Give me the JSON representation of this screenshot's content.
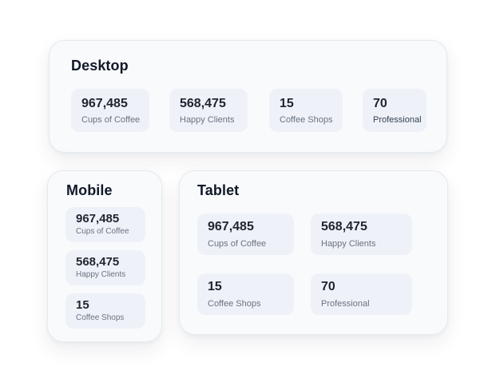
{
  "desktop": {
    "title": "Desktop",
    "stats": [
      {
        "value": "967,485",
        "label": "Cups of Coffee"
      },
      {
        "value": "568,475",
        "label": "Happy Clients"
      },
      {
        "value": "15",
        "label": "Coffee Shops"
      },
      {
        "value": "70",
        "label": "Professional"
      }
    ]
  },
  "mobile": {
    "title": "Mobile",
    "stats": [
      {
        "value": "967,485",
        "label": "Cups of Coffee"
      },
      {
        "value": "568,475",
        "label": "Happy Clients"
      },
      {
        "value": "15",
        "label": "Coffee Shops"
      }
    ]
  },
  "tablet": {
    "title": "Tablet",
    "stats": [
      {
        "value": "967,485",
        "label": "Cups of Coffee"
      },
      {
        "value": "568,475",
        "label": "Happy Clients"
      },
      {
        "value": "15",
        "label": "Coffee Shops"
      },
      {
        "value": "70",
        "label": "Professional"
      }
    ]
  },
  "colors": {
    "card_background": "#f8fafc",
    "stat_background": "#eef2f8",
    "value_text": "#1f2430",
    "label_text": "#6b7280"
  }
}
